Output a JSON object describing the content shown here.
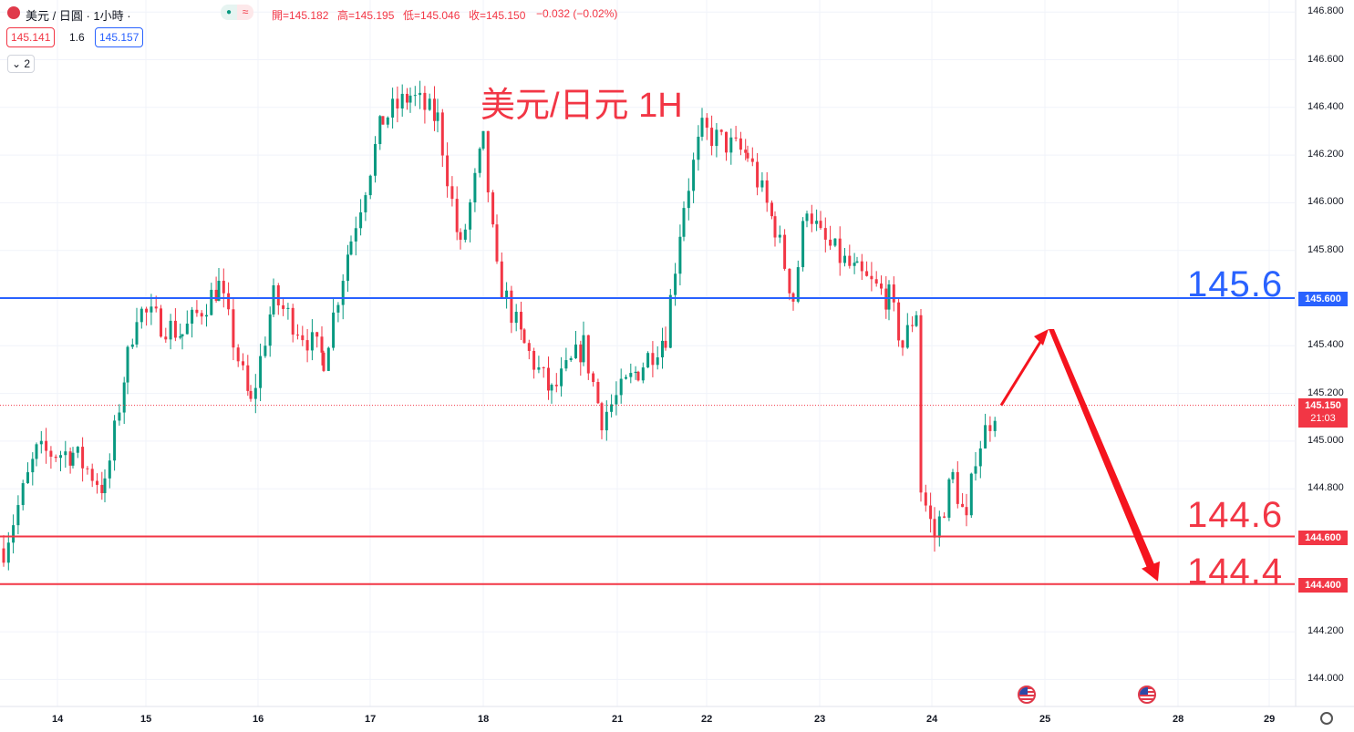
{
  "header": {
    "symbol": "美元 / 日圓 · 1小時 ·",
    "ohlc_open": "開=145.182",
    "ohlc_high": "高=145.195",
    "ohlc_low": "低=145.046",
    "ohlc_close": "收=145.150",
    "change": "−0.032 (−0.02%)",
    "bid": "145.141",
    "spread": "1.6",
    "ask": "145.157",
    "indicators_toggle": "2",
    "status_icon_1": "●",
    "status_icon_2": "≈"
  },
  "overlay_title": "美元/日元 1H",
  "levels": {
    "level_1": {
      "text": "145.6",
      "tag": "145.600",
      "value": 145.6,
      "color": "#2962ff"
    },
    "level_2": {
      "text": "144.6",
      "tag": "144.600",
      "value": 144.6,
      "color": "#f23645"
    },
    "level_3": {
      "text": "144.4",
      "tag": "144.400",
      "value": 144.4,
      "color": "#f23645"
    }
  },
  "current_price": {
    "value": 145.15,
    "label": "145.150",
    "countdown": "21:03"
  },
  "colors": {
    "up": "#089981",
    "down": "#f23645",
    "arrow": "#f5141e"
  },
  "chart_data": {
    "type": "candlestick",
    "title": "美元/日元 1H",
    "ylim": [
      143.95,
      146.87
    ],
    "y_ticks": [
      "146.800",
      "146.600",
      "146.400",
      "146.200",
      "146.000",
      "145.800",
      "145.400",
      "145.200",
      "145.000",
      "144.800",
      "144.200",
      "144.000"
    ],
    "x_ticks": [
      "14",
      "15",
      "16",
      "17",
      "18",
      "21",
      "22",
      "23",
      "24",
      "25",
      "28",
      "29"
    ],
    "grid": true,
    "key_points": [
      {
        "date": "14",
        "price": 144.5
      },
      {
        "date": "15",
        "price": 145.55
      },
      {
        "date": "16",
        "price": 145.3
      },
      {
        "date": "17",
        "price": 146.45
      },
      {
        "date": "18",
        "price": 145.7
      },
      {
        "date": "21",
        "price": 145.1
      },
      {
        "date": "22",
        "price": 146.3
      },
      {
        "date": "23",
        "price": 145.7
      },
      {
        "date": "24",
        "price": 144.6
      },
      {
        "date": "24",
        "price": 145.15
      }
    ],
    "projection": [
      {
        "date": "24",
        "price": 145.15
      },
      {
        "date": "25",
        "price": 145.47
      },
      {
        "date": "28",
        "price": 144.4
      }
    ]
  }
}
